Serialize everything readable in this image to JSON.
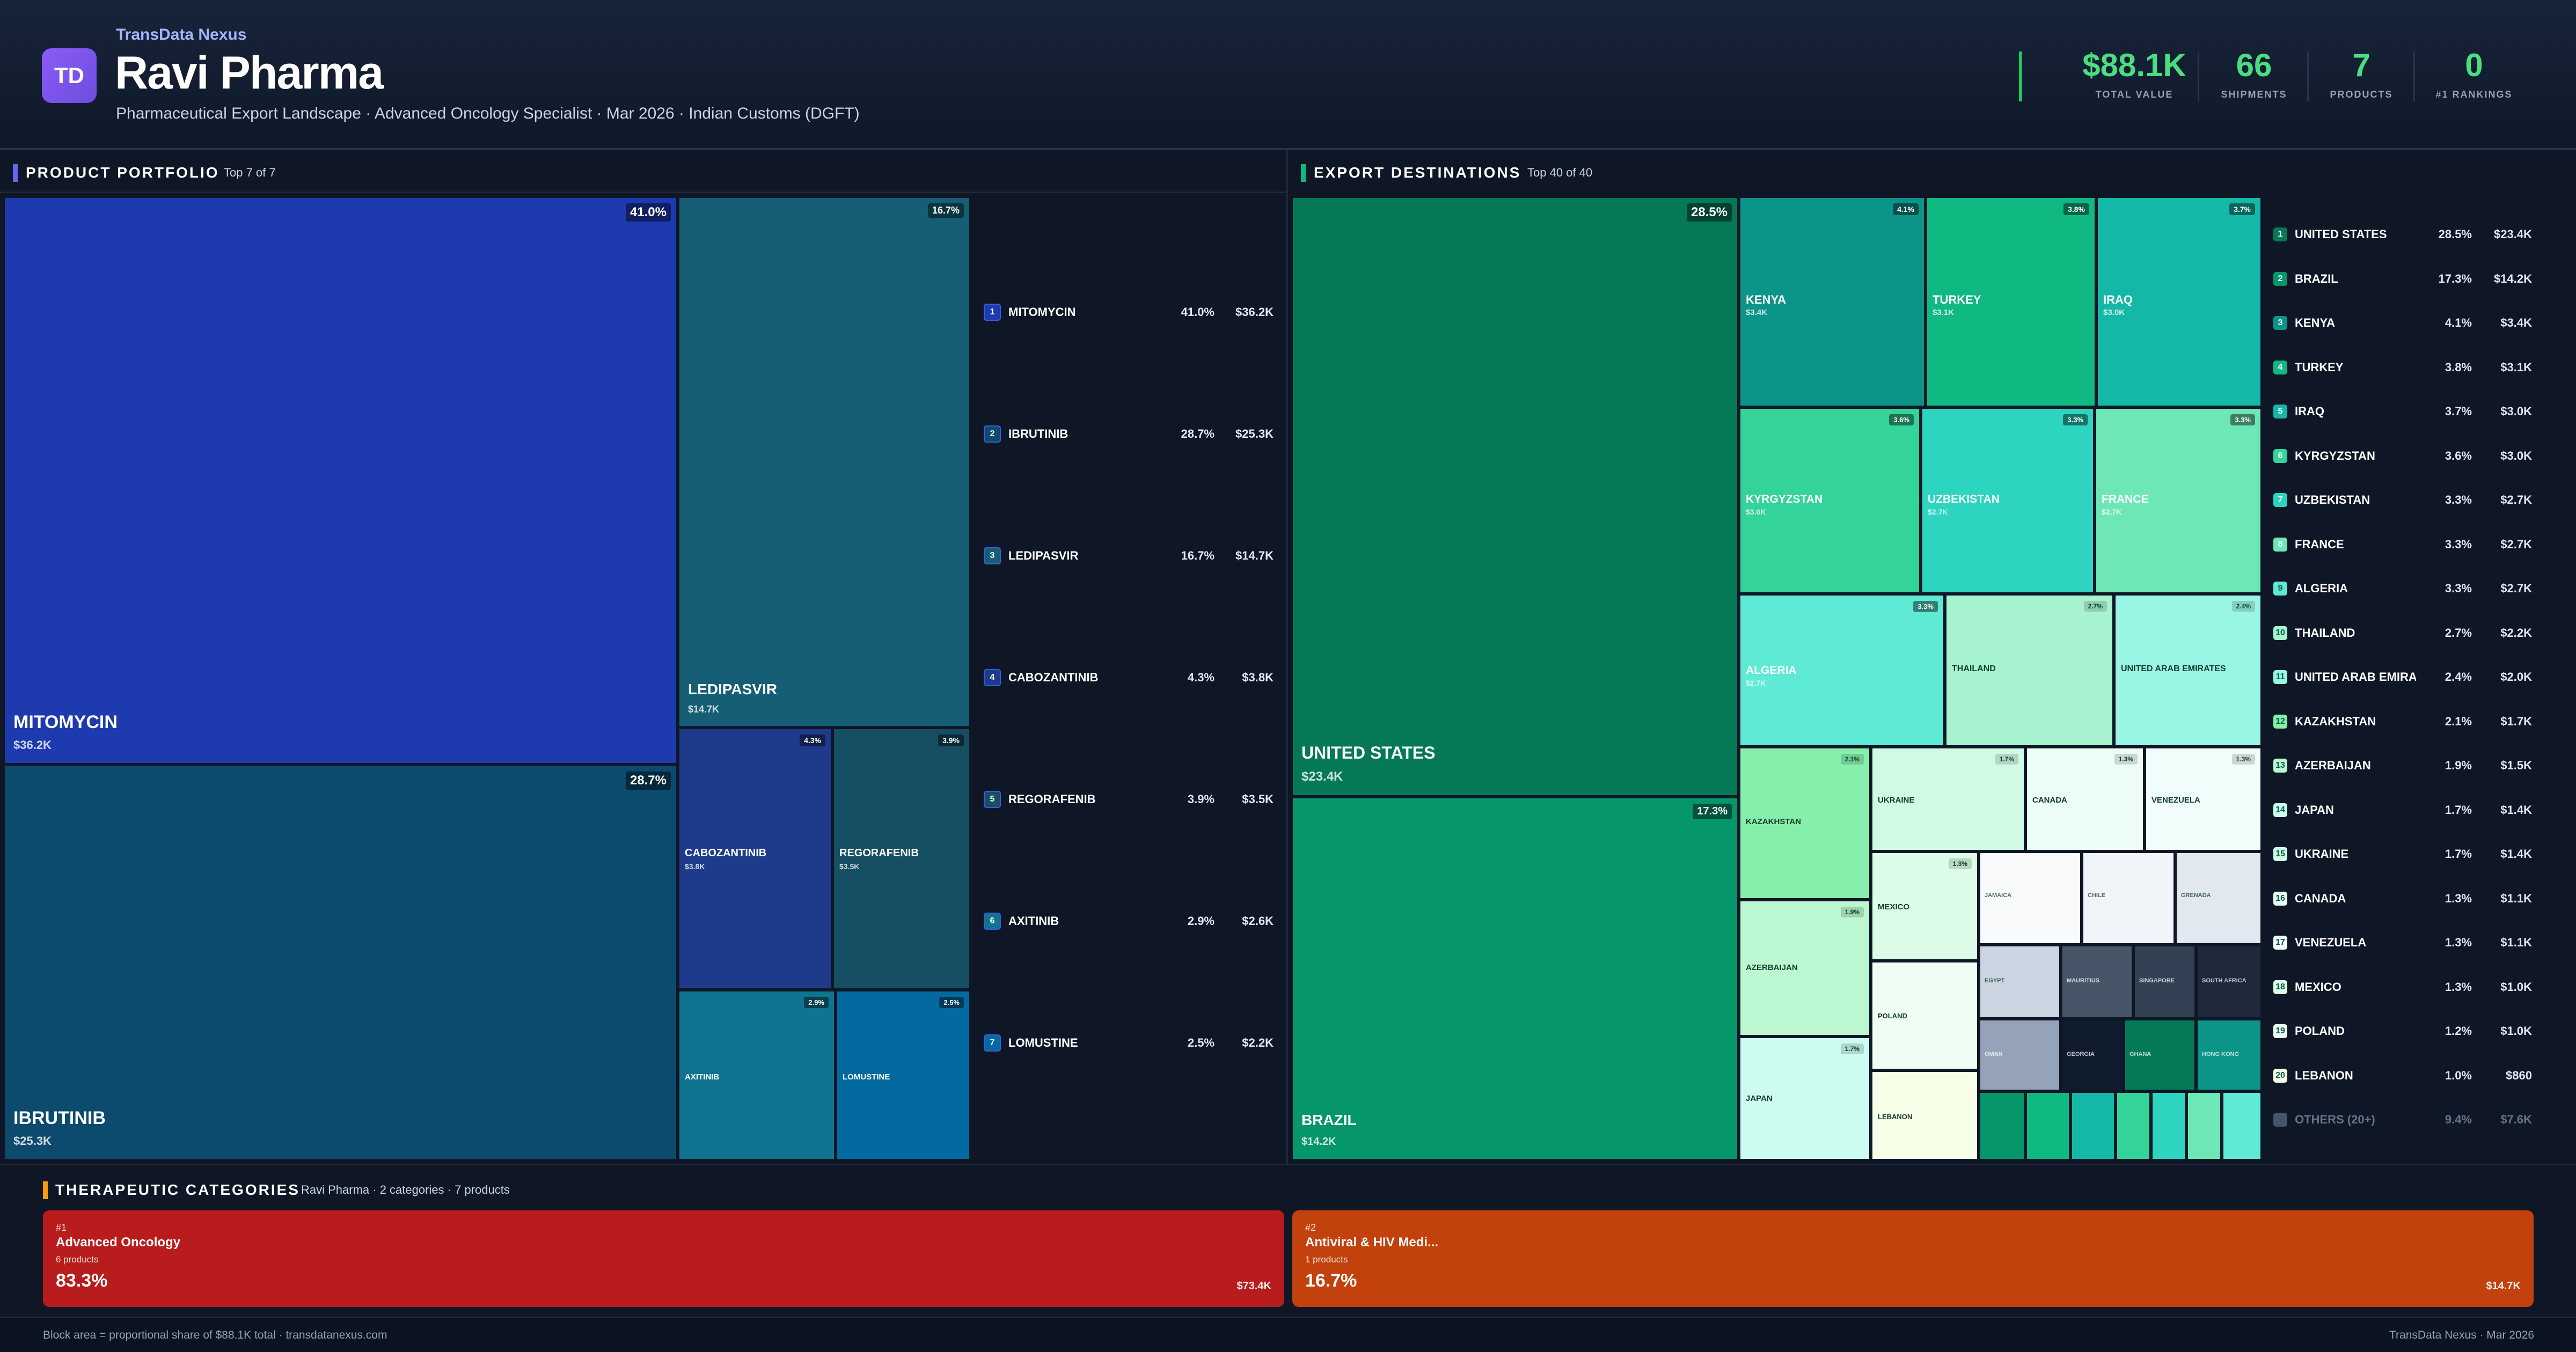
{
  "header": {
    "logo_text": "TD",
    "brand": "TransData Nexus",
    "company": "Ravi Pharma",
    "subtitle": "Pharmaceutical Export Landscape · Advanced Oncology Specialist · Mar 2026 · Indian Customs (DGFT)",
    "kpis": [
      {
        "value": "$88.1K",
        "label": "TOTAL VALUE"
      },
      {
        "value": "66",
        "label": "SHIPMENTS"
      },
      {
        "value": "7",
        "label": "PRODUCTS"
      },
      {
        "value": "0",
        "label": "#1 RANKINGS"
      }
    ]
  },
  "products": {
    "title": "PRODUCT PORTFOLIO",
    "subtitle": "Top 7 of 7",
    "items": [
      {
        "rank": "1",
        "name": "MITOMYCIN",
        "pct": "41.0%",
        "value": "$36.2K",
        "color": "#1e3aaf"
      },
      {
        "rank": "2",
        "name": "IBRUTINIB",
        "pct": "28.7%",
        "value": "$25.3K",
        "color": "#0c4a6e"
      },
      {
        "rank": "3",
        "name": "LEDIPASVIR",
        "pct": "16.7%",
        "value": "$14.7K",
        "color": "#155e75"
      },
      {
        "rank": "4",
        "name": "CABOZANTINIB",
        "pct": "4.3%",
        "value": "$3.8K",
        "color": "#1e3a8a"
      },
      {
        "rank": "5",
        "name": "REGORAFENIB",
        "pct": "3.9%",
        "value": "$3.5K",
        "color": "#164e63"
      },
      {
        "rank": "6",
        "name": "AXITINIB",
        "pct": "2.9%",
        "value": "$2.6K",
        "color": "#0e7490"
      },
      {
        "rank": "7",
        "name": "LOMUSTINE",
        "pct": "2.5%",
        "value": "$2.2K",
        "color": "#0369a1"
      }
    ]
  },
  "destinations": {
    "title": "EXPORT DESTINATIONS",
    "subtitle": "Top 40 of 40",
    "items": [
      {
        "rank": "1",
        "name": "UNITED STATES",
        "pct": "28.5%",
        "value": "$23.4K",
        "color": "#047857"
      },
      {
        "rank": "2",
        "name": "BRAZIL",
        "pct": "17.3%",
        "value": "$14.2K",
        "color": "#059669"
      },
      {
        "rank": "3",
        "name": "KENYA",
        "pct": "4.1%",
        "value": "$3.4K",
        "color": "#0d9488"
      },
      {
        "rank": "4",
        "name": "TURKEY",
        "pct": "3.8%",
        "value": "$3.1K",
        "color": "#10b981"
      },
      {
        "rank": "5",
        "name": "IRAQ",
        "pct": "3.7%",
        "value": "$3.0K",
        "color": "#14b8a6"
      },
      {
        "rank": "6",
        "name": "KYRGYZSTAN",
        "pct": "3.6%",
        "value": "$3.0K",
        "color": "#34d399"
      },
      {
        "rank": "7",
        "name": "UZBEKISTAN",
        "pct": "3.3%",
        "value": "$2.7K",
        "color": "#2dd4bf"
      },
      {
        "rank": "8",
        "name": "FRANCE",
        "pct": "3.3%",
        "value": "$2.7K",
        "color": "#6ee7b7"
      },
      {
        "rank": "9",
        "name": "ALGERIA",
        "pct": "3.3%",
        "value": "$2.7K",
        "color": "#5eead4"
      },
      {
        "rank": "10",
        "name": "THAILAND",
        "pct": "2.7%",
        "value": "$2.2K",
        "color": "#a7f3d0"
      },
      {
        "rank": "11",
        "name": "UNITED ARAB EMIRATES",
        "pct": "2.4%",
        "value": "$2.0K",
        "color": "#99f6e4"
      },
      {
        "rank": "12",
        "name": "KAZAKHSTAN",
        "pct": "2.1%",
        "value": "$1.7K",
        "color": "#86efac"
      },
      {
        "rank": "13",
        "name": "AZERBAIJAN",
        "pct": "1.9%",
        "value": "$1.5K",
        "color": "#bbf7d0"
      },
      {
        "rank": "14",
        "name": "JAPAN",
        "pct": "1.7%",
        "value": "$1.4K",
        "color": "#ccfbf1"
      },
      {
        "rank": "15",
        "name": "UKRAINE",
        "pct": "1.7%",
        "value": "$1.4K",
        "color": "#d1fae5"
      },
      {
        "rank": "16",
        "name": "CANADA",
        "pct": "1.3%",
        "value": "$1.1K",
        "color": "#ecfdf5"
      },
      {
        "rank": "17",
        "name": "VENEZUELA",
        "pct": "1.3%",
        "value": "$1.1K",
        "color": "#f0fdfa"
      },
      {
        "rank": "18",
        "name": "MEXICO",
        "pct": "1.3%",
        "value": "$1.0K",
        "color": "#dcfce7"
      },
      {
        "rank": "19",
        "name": "POLAND",
        "pct": "1.2%",
        "value": "$1.0K",
        "color": "#f0fdf4"
      },
      {
        "rank": "20",
        "name": "LEBANON",
        "pct": "1.0%",
        "value": "$860",
        "color": "#f7fee7"
      }
    ],
    "others": {
      "name": "OTHERS (20+)",
      "pct": "9.4%",
      "value": "$7.6K",
      "color": "#475569"
    },
    "extra_blocks": [
      "JAMAICA",
      "CHILE",
      "GRENADA",
      "EGYPT",
      "MAURITIUS",
      "SINGAPORE",
      "SOUTH AFRICA",
      "OMAN",
      "GEORGIA",
      "GHANA",
      "HONG KONG"
    ]
  },
  "categories": {
    "title": "THERAPEUTIC CATEGORIES",
    "subtitle": "Ravi Pharma · 2 categories · 7 products",
    "items": [
      {
        "rank": "#1",
        "name": "Advanced Oncology",
        "count": "6 products",
        "pct": "83.3%",
        "value": "$73.4K",
        "color": "#b91c1c"
      },
      {
        "rank": "#2",
        "name": "Antiviral & HIV Medi...",
        "count": "1 products",
        "pct": "16.7%",
        "value": "$14.7K",
        "color": "#c2410c"
      }
    ]
  },
  "footer": {
    "left": "Block area = proportional share of $88.1K total · transdatanexus.com",
    "right": "TransData Nexus · Mar 2026"
  }
}
